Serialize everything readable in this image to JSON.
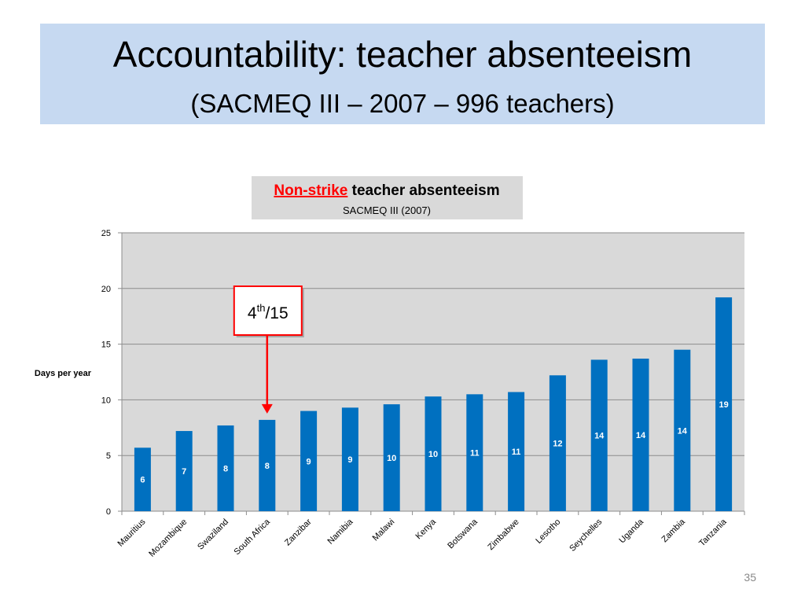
{
  "slide": {
    "title": "Accountability: teacher absenteeism",
    "subtitle": "(SACMEQ III – 2007 – 996 teachers)",
    "page_number": "35"
  },
  "chart_data": {
    "type": "bar",
    "title_highlight": "Non-strike",
    "title_rest": " teacher absenteeism",
    "subtitle": "SACMEQ III (2007)",
    "ylabel": "Days per year",
    "ylim": [
      0,
      25
    ],
    "yticks": [
      0,
      5,
      10,
      15,
      20,
      25
    ],
    "grid": true,
    "categories": [
      "Mauritius",
      "Mozambique",
      "Swaziland",
      "South Africa",
      "Zanzibar",
      "Namibia",
      "Malawi",
      "Kenya",
      "Botswana",
      "Zimbabwe",
      "Lesotho",
      "Seychelles",
      "Uganda",
      "Zambia",
      "Tanzania"
    ],
    "values": [
      5.7,
      7.2,
      7.7,
      8.2,
      9.0,
      9.3,
      9.6,
      10.3,
      10.5,
      10.7,
      12.2,
      13.6,
      13.7,
      14.5,
      19.2
    ],
    "data_labels": [
      "6",
      "7",
      "8",
      "8",
      "9",
      "9",
      "10",
      "10",
      "11",
      "11",
      "12",
      "14",
      "14",
      "14",
      "19"
    ],
    "annotation": {
      "rank_base": "4",
      "rank_sup": "th",
      "rank_rest": "/15",
      "target_category": "South Africa"
    },
    "colors": {
      "bar": "#0070c0",
      "plot_bg": "#d9d9d9",
      "highlight_text": "#ff0000",
      "annotation_border": "#ff0000"
    }
  }
}
